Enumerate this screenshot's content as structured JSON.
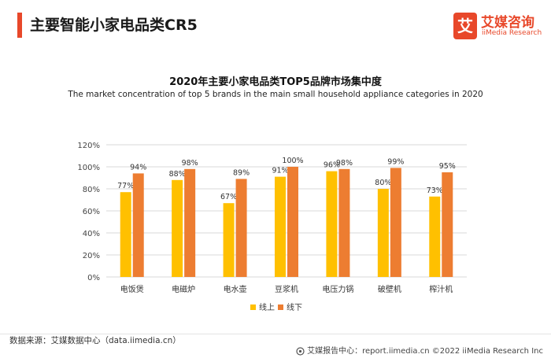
{
  "header": {
    "title": "主要智能小家电品类CR5",
    "logo": {
      "badge": "艾",
      "name_cn": "艾媒咨询",
      "name_en": "iiMedia Research"
    }
  },
  "colors": {
    "accent": "#e8482a",
    "series1": "#ffc000",
    "series2": "#ed7d31",
    "grid": "#d9d9d9"
  },
  "chart_data": {
    "type": "bar",
    "title": "2020年主要小家电品类TOP5品牌市场集中度",
    "subtitle": "The market concentration of top 5 brands in the main small household appliance categories in 2020",
    "categories": [
      "电饭煲",
      "电磁炉",
      "电水壶",
      "豆浆机",
      "电压力锅",
      "破壁机",
      "榨汁机"
    ],
    "series": [
      {
        "name": "线上",
        "values": [
          77,
          88,
          67,
          91,
          96,
          80,
          73
        ],
        "labels": [
          "77%",
          "88%",
          "67%",
          "91%",
          "96%",
          "80%",
          "73%"
        ]
      },
      {
        "name": "线下",
        "values": [
          94,
          98,
          89,
          100,
          98,
          99,
          95
        ],
        "labels": [
          "94%",
          "98%",
          "89%",
          "100%",
          "98%",
          "99%",
          "95%"
        ]
      }
    ],
    "yticks": [
      "0%",
      "20%",
      "40%",
      "60%",
      "80%",
      "100%",
      "120%"
    ],
    "ylim": [
      0,
      120
    ],
    "grid": true,
    "legend": "bottom-center"
  },
  "footer": {
    "source": "数据来源：艾媒数据中心（data.iimedia.cn）",
    "report": "艾媒报告中心：report.iimedia.cn  ©2022  iiMedia Research  Inc"
  }
}
